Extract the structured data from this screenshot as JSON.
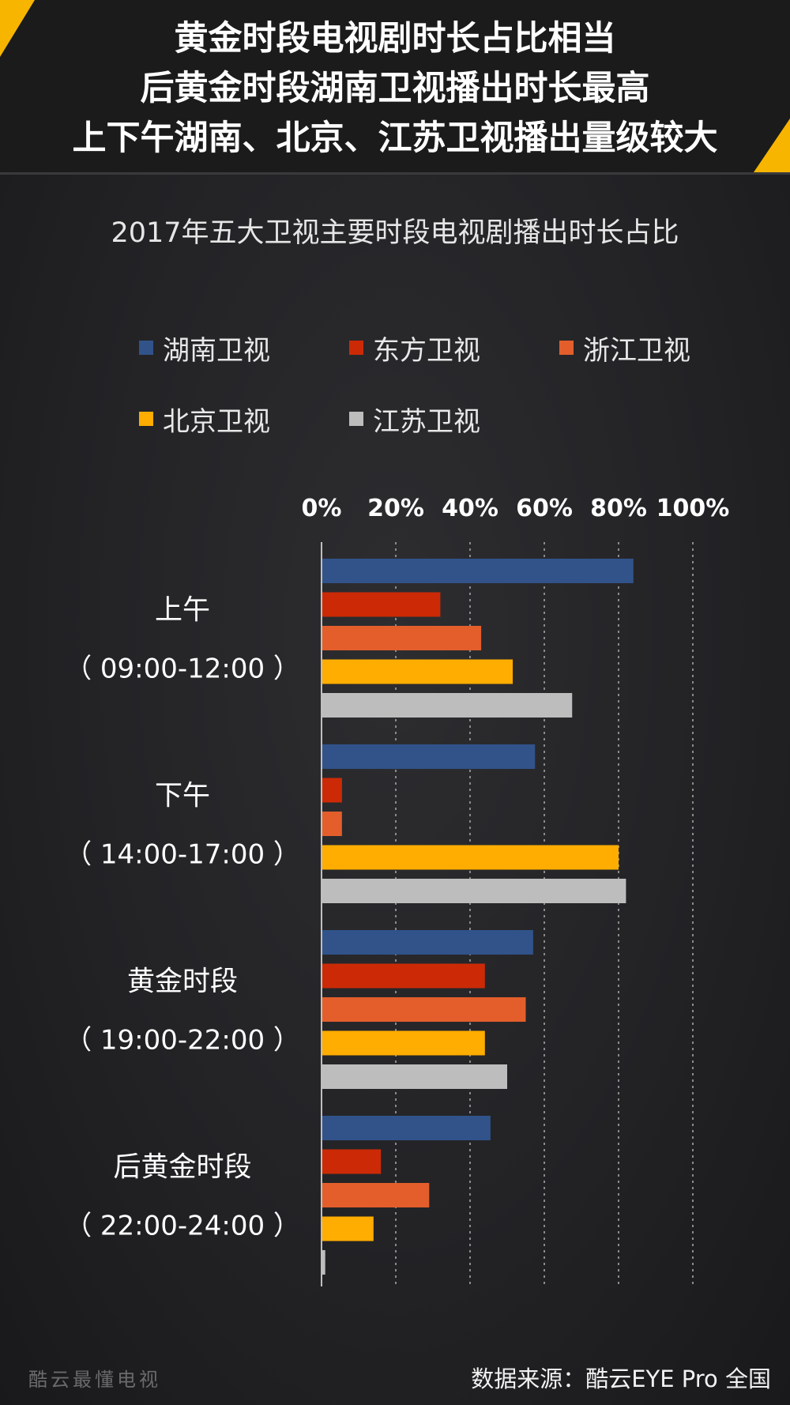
{
  "header": {
    "lines": [
      "黄金时段电视剧时长占比相当",
      "后黄金时段湖南卫视播出时长最高",
      "上下午湖南、北京、江苏卫视播出量级较大"
    ]
  },
  "legend": [
    {
      "label": "湖南卫视",
      "color": "#31538a"
    },
    {
      "label": "东方卫视",
      "color": "#cc2a06"
    },
    {
      "label": "浙江卫视",
      "color": "#e35e2b"
    },
    {
      "label": "北京卫视",
      "color": "#ffad00"
    },
    {
      "label": "江苏卫视",
      "color": "#bdbdbd"
    }
  ],
  "chart_data": {
    "type": "bar",
    "orientation": "horizontal",
    "title": "2017年五大卫视主要时段电视剧播出时长占比",
    "categories": [
      {
        "name": "上午",
        "range": "（ 09:00-12:00 ）"
      },
      {
        "name": "下午",
        "range": "（ 14:00-17:00 ）"
      },
      {
        "name": "黄金时段",
        "range": "（ 19:00-22:00 ）"
      },
      {
        "name": "后黄金时段",
        "range": "（ 22:00-24:00 ）"
      }
    ],
    "series": [
      {
        "name": "湖南卫视",
        "color": "#31538a",
        "values": [
          84,
          57.5,
          57,
          45.5
        ]
      },
      {
        "name": "东方卫视",
        "color": "#cc2a06",
        "values": [
          32,
          5.5,
          44,
          16
        ]
      },
      {
        "name": "浙江卫视",
        "color": "#e35e2b",
        "values": [
          43,
          5.5,
          55,
          29
        ]
      },
      {
        "name": "北京卫视",
        "color": "#ffad00",
        "values": [
          51.5,
          80,
          44,
          14
        ]
      },
      {
        "name": "江苏卫视",
        "color": "#bdbdbd",
        "values": [
          67.5,
          82,
          50,
          1
        ]
      }
    ],
    "xlim": [
      0,
      100
    ],
    "xticks": [
      "0%",
      "20%",
      "40%",
      "60%",
      "80%",
      "100%"
    ],
    "grid": true,
    "legend_position": "top"
  },
  "footer": {
    "brand": "酷云最懂电视",
    "source": "数据来源：酷云EYE Pro 全国"
  }
}
